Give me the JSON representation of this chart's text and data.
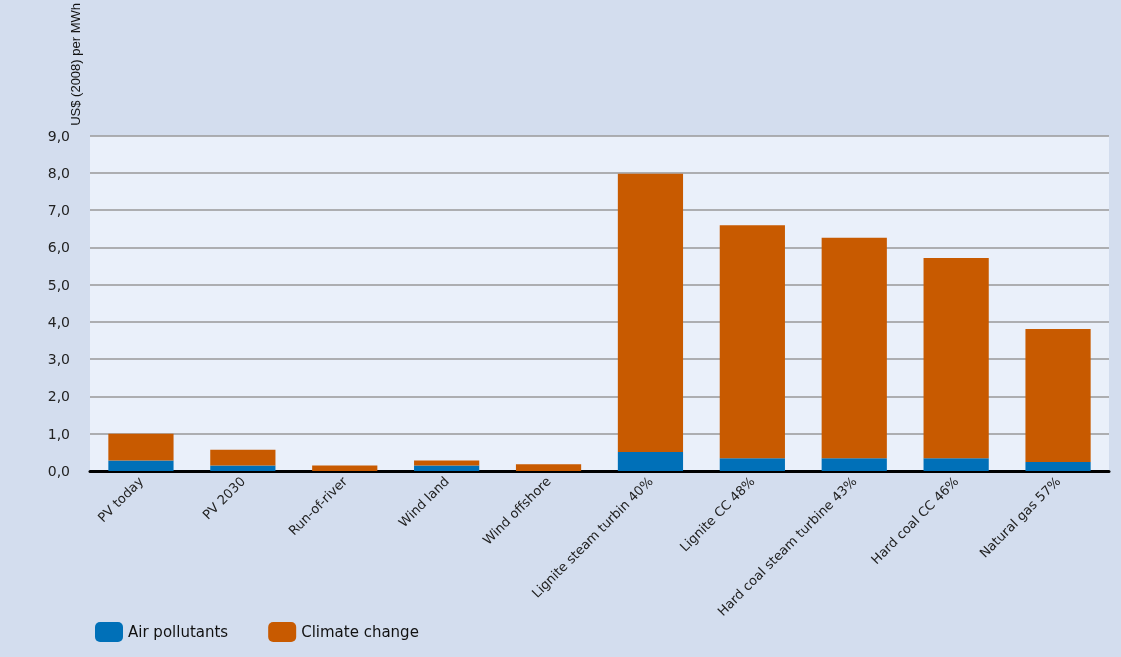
{
  "chart_data": {
    "type": "bar",
    "stacked": true,
    "ylabel": "US$ (2008) per MWh",
    "categories": [
      "PV today",
      "PV 2030",
      "Run-of-river",
      "Wind land",
      "Wind offshore",
      "Lignite steam turbin 40%",
      "Lignite CC 48%",
      "Hard coal steam turbine 43%",
      "Hard coal CC 46%",
      "Natural gas 57%"
    ],
    "series": [
      {
        "name": "Air pollutants",
        "color": "#0070b8",
        "values": [
          0.28,
          0.15,
          0,
          0.15,
          0,
          0.51,
          0.34,
          0.34,
          0.34,
          0.24
        ]
      },
      {
        "name": "Climate change",
        "color": "#c85a00",
        "values": [
          0.72,
          0.42,
          0.15,
          0.13,
          0.18,
          7.47,
          6.26,
          5.92,
          5.38,
          3.57
        ]
      }
    ],
    "ylim": [
      0,
      9
    ],
    "yticks": [
      {
        "value": 0,
        "label": "0,0"
      },
      {
        "value": 1,
        "label": "1,0"
      },
      {
        "value": 2,
        "label": "2,0"
      },
      {
        "value": 3,
        "label": "3,0"
      },
      {
        "value": 4,
        "label": "4,0"
      },
      {
        "value": 5,
        "label": "5,0"
      },
      {
        "value": 6,
        "label": "6,0"
      },
      {
        "value": 7,
        "label": "7,0"
      },
      {
        "value": 8,
        "label": "8,0"
      },
      {
        "value": 9,
        "label": "9,0"
      }
    ],
    "grid": "y",
    "legend": "bottom left"
  }
}
